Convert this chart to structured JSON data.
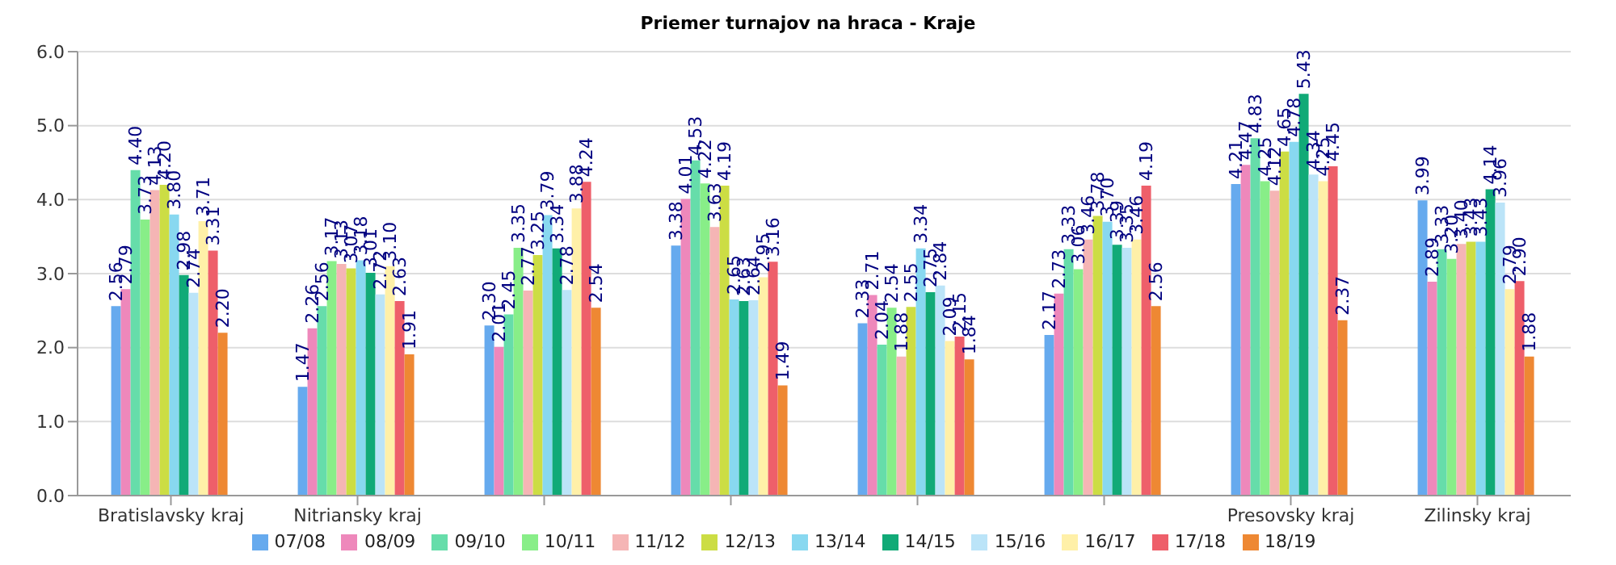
{
  "chart_data": {
    "type": "bar",
    "title": "Priemer turnajov na hraca - Kraje",
    "categories": [
      "Bratislavsky kraj",
      "Nitriansky kraj",
      null,
      null,
      null,
      null,
      "Presovsky kraj",
      "Zilinsky kraj"
    ],
    "series": [
      {
        "name": "07/08",
        "color": "#66aaee",
        "values": [
          2.56,
          1.47,
          2.3,
          3.38,
          2.33,
          2.17,
          4.21,
          3.99
        ],
        "value_labels": [
          "2.56",
          "1.47",
          "2.30",
          "3.38",
          "2.33",
          "2.17",
          "4.21",
          "3.99"
        ]
      },
      {
        "name": "08/09",
        "color": "#ee88bb",
        "values": [
          2.79,
          2.26,
          2.01,
          4.01,
          2.71,
          2.73,
          4.47,
          2.89
        ],
        "value_labels": [
          "2.79",
          "2.26",
          "2.01",
          "4.01",
          "2.71",
          "2.73",
          "4.47",
          "2.89"
        ]
      },
      {
        "name": "09/10",
        "color": "#66ddaa",
        "values": [
          4.4,
          2.56,
          2.45,
          4.53,
          2.04,
          3.33,
          4.83,
          3.33
        ],
        "value_labels": [
          "4.40",
          "2.56",
          "2.45",
          "4.53",
          "2.04",
          "3.33",
          "4.83",
          "3.33"
        ]
      },
      {
        "name": "10/11",
        "color": "#88ee88",
        "values": [
          3.73,
          3.17,
          3.35,
          4.22,
          2.54,
          3.06,
          4.25,
          3.2
        ],
        "value_labels": [
          "3.73",
          "3.17",
          "3.35",
          "4.22",
          "2.54",
          "3.06",
          "4.25",
          "3.20"
        ]
      },
      {
        "name": "11/12",
        "color": "#f5b5b5",
        "values": [
          4.13,
          3.13,
          2.77,
          3.63,
          1.88,
          3.46,
          4.12,
          3.4
        ],
        "value_labels": [
          "4.13",
          "3.13",
          "2.77",
          "3.63",
          "1.88",
          "3.46",
          "4.12",
          "3.40"
        ]
      },
      {
        "name": "12/13",
        "color": "#ccdd44",
        "values": [
          4.2,
          3.07,
          3.25,
          4.19,
          2.55,
          3.78,
          4.65,
          3.43
        ],
        "value_labels": [
          "4.20",
          "3.07",
          "3.25",
          "4.19",
          "2.55",
          "3.78",
          "4.65",
          "3.43"
        ]
      },
      {
        "name": "13/14",
        "color": "#88d8f0",
        "values": [
          3.8,
          3.18,
          3.79,
          2.65,
          3.34,
          3.7,
          4.78,
          3.43
        ],
        "value_labels": [
          "3.80",
          "3.18",
          "3.79",
          "2.65",
          "3.34",
          "3.70",
          "4.78",
          "3.43"
        ]
      },
      {
        "name": "14/15",
        "color": "#11aa77",
        "values": [
          2.98,
          3.01,
          3.34,
          2.63,
          2.75,
          3.39,
          5.43,
          4.14
        ],
        "value_labels": [
          "2.98",
          "3.01",
          "3.34",
          "2.63",
          "2.75",
          "3.39",
          "5.43",
          "4.14"
        ]
      },
      {
        "name": "15/16",
        "color": "#bbe4f8",
        "values": [
          2.74,
          2.72,
          2.78,
          2.64,
          2.84,
          3.35,
          4.34,
          3.96
        ],
        "value_labels": [
          "2.74",
          "2.72",
          "2.78",
          "2.64",
          "2.84",
          "3.35",
          "4.34",
          "3.96"
        ]
      },
      {
        "name": "16/17",
        "color": "#fff0a8",
        "values": [
          3.71,
          3.1,
          3.88,
          2.95,
          2.09,
          3.46,
          4.25,
          2.79
        ],
        "value_labels": [
          "3.71",
          "3.10",
          "3.88",
          "2.95",
          "2.09",
          "3.46",
          "4.25",
          "2.79"
        ]
      },
      {
        "name": "17/18",
        "color": "#ee5f6a",
        "values": [
          3.31,
          2.63,
          4.24,
          3.16,
          2.15,
          4.19,
          4.45,
          2.9
        ],
        "value_labels": [
          "3.31",
          "2.63",
          "4.24",
          "3.16",
          "2.15",
          "4.19",
          "4.45",
          "2.90"
        ]
      },
      {
        "name": "18/19",
        "color": "#ee8833",
        "values": [
          2.2,
          1.91,
          2.54,
          1.49,
          1.84,
          2.56,
          2.37,
          1.88
        ],
        "value_labels": [
          "2.20",
          "1.91",
          "2.54",
          "1.49",
          "1.84",
          "2.56",
          "2.37",
          "1.88"
        ]
      }
    ],
    "ylim": [
      0,
      6
    ],
    "yticks": [
      {
        "value": 0,
        "label": "0.0"
      },
      {
        "value": 1,
        "label": "1.0"
      },
      {
        "value": 2,
        "label": "2.0"
      },
      {
        "value": 3,
        "label": "3.0"
      },
      {
        "value": 4,
        "label": "4.0"
      },
      {
        "value": 5,
        "label": "5.0"
      },
      {
        "value": 6,
        "label": "6.0"
      }
    ],
    "grid": "y",
    "legend": "bottom"
  }
}
